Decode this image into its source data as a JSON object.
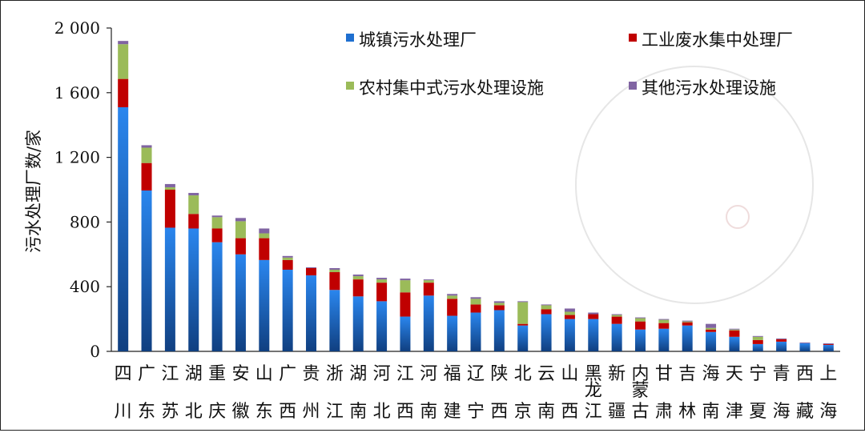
{
  "chart_data": {
    "type": "bar",
    "stacked": true,
    "ylabel": "污水处理厂数/家",
    "ylim": [
      0,
      2000
    ],
    "yticks": [
      {
        "v": 0,
        "label": "0"
      },
      {
        "v": 400,
        "label": "400"
      },
      {
        "v": 800,
        "label": "800"
      },
      {
        "v": 1200,
        "label": "1 200"
      },
      {
        "v": 1600,
        "label": "1 600"
      },
      {
        "v": 2000,
        "label": "2 000"
      }
    ],
    "grid": false,
    "legend_position": "top-right",
    "categories": [
      [
        "四",
        "川"
      ],
      [
        "广",
        "东"
      ],
      [
        "江",
        "苏"
      ],
      [
        "湖",
        "北"
      ],
      [
        "重",
        "庆"
      ],
      [
        "安",
        "徽"
      ],
      [
        "山",
        "东"
      ],
      [
        "广",
        "西"
      ],
      [
        "贵",
        "州"
      ],
      [
        "浙",
        "江"
      ],
      [
        "湖",
        "南"
      ],
      [
        "河",
        "北"
      ],
      [
        "江",
        "西"
      ],
      [
        "河",
        "南"
      ],
      [
        "福",
        "建"
      ],
      [
        "辽",
        "宁"
      ],
      [
        "陕",
        "西"
      ],
      [
        "北",
        "京"
      ],
      [
        "云",
        "南"
      ],
      [
        "山",
        "西"
      ],
      [
        "黑",
        "龙",
        "江"
      ],
      [
        "新",
        "疆"
      ],
      [
        "内",
        "蒙",
        "古"
      ],
      [
        "甘",
        "肃"
      ],
      [
        "吉",
        "林"
      ],
      [
        "海",
        "南"
      ],
      [
        "天",
        "津"
      ],
      [
        "宁",
        "夏"
      ],
      [
        "青",
        "海"
      ],
      [
        "西",
        "藏"
      ],
      [
        "上",
        "海"
      ]
    ],
    "series": [
      {
        "name": "城镇污水处理厂",
        "color": "#1f6fd0",
        "values": [
          1510,
          995,
          765,
          760,
          675,
          600,
          565,
          505,
          470,
          380,
          340,
          310,
          215,
          345,
          220,
          240,
          255,
          160,
          230,
          200,
          200,
          170,
          135,
          140,
          160,
          120,
          90,
          45,
          60,
          50,
          40
        ]
      },
      {
        "name": "工业废水集中处理厂",
        "color": "#c00000",
        "values": [
          175,
          170,
          235,
          90,
          85,
          100,
          135,
          60,
          45,
          110,
          105,
          115,
          150,
          80,
          105,
          50,
          30,
          10,
          30,
          25,
          30,
          45,
          50,
          35,
          20,
          15,
          40,
          25,
          15,
          0,
          5
        ]
      },
      {
        "name": "农村集中式污水处理设施",
        "color": "#9bbb59",
        "values": [
          215,
          95,
          15,
          115,
          70,
          105,
          30,
          15,
          0,
          15,
          20,
          20,
          75,
          15,
          20,
          35,
          15,
          135,
          25,
          20,
          0,
          10,
          20,
          20,
          5,
          10,
          5,
          20,
          0,
          0,
          0
        ]
      },
      {
        "name": "其他污水处理设施",
        "color": "#8064a2",
        "values": [
          20,
          15,
          20,
          15,
          10,
          20,
          30,
          10,
          5,
          10,
          10,
          10,
          10,
          5,
          10,
          10,
          10,
          5,
          5,
          20,
          10,
          5,
          5,
          5,
          5,
          25,
          5,
          5,
          5,
          5,
          5
        ]
      }
    ]
  }
}
